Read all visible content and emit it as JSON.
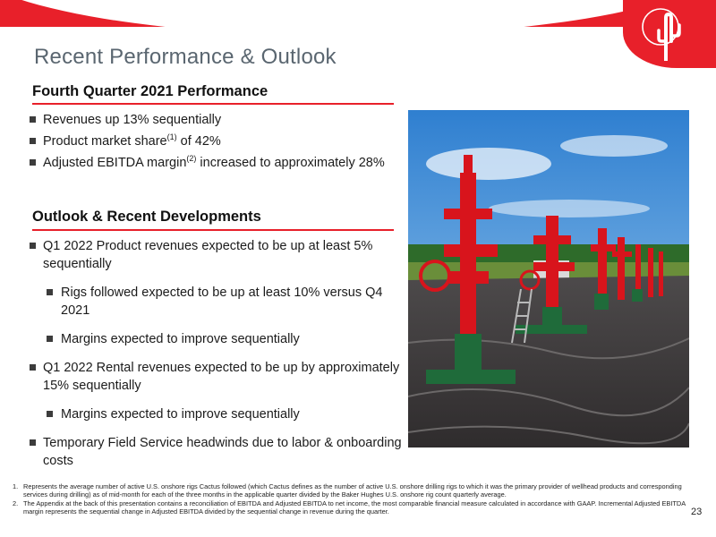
{
  "title": "Recent Performance & Outlook",
  "section1": {
    "heading": "Fourth Quarter 2021 Performance",
    "bullets": [
      {
        "pre": "Revenues up 13% sequentially",
        "sup": "",
        "post": ""
      },
      {
        "pre": "Product market share",
        "sup": "(1)",
        "post": " of 42%"
      },
      {
        "pre": "Adjusted EBITDA margin",
        "sup": "(2)",
        "post": " increased to approximately 28%"
      }
    ]
  },
  "section2": {
    "heading": "Outlook & Recent Developments",
    "bullets": [
      {
        "text": "Q1 2022 Product revenues expected to be up at least 5% sequentially"
      },
      {
        "text": "Rigs followed expected to be up at least 10% versus Q4 2021"
      },
      {
        "text": "Margins expected to improve sequentially"
      },
      {
        "text": "Q1 2022 Rental revenues expected to be up by approximately 15% sequentially"
      },
      {
        "text": "Margins expected to improve sequentially"
      },
      {
        "text": "Temporary Field Service headwinds due to labor & onboarding costs"
      }
    ]
  },
  "footnotes": [
    {
      "num": "1.",
      "text": "Represents the average number of active U.S. onshore rigs Cactus followed (which Cactus defines as the number of active U.S. onshore drilling rigs to which it was the primary provider of wellhead products and corresponding services during drilling) as of mid-month for each of the three months in the applicable quarter divided by the Baker Hughes U.S. onshore rig count quarterly average."
    },
    {
      "num": "2.",
      "text": "The Appendix at the back of this presentation contains a reconciliation of EBITDA and Adjusted EBITDA to net income, the most comparable financial measure calculated in accordance with GAAP. Incremental Adjusted EBITDA margin represents the sequential change in Adjusted EBITDA divided by the sequential change in revenue during the quarter."
    }
  ],
  "page_number": "23",
  "colors": {
    "accent": "#e8202a",
    "title_gray": "#5a6670",
    "wellhead_red": "#d8141c",
    "wellhead_green": "#1f6b3a"
  },
  "icons": {
    "logo": "cactus-logo-icon",
    "bullet": "square-bullet-icon"
  }
}
